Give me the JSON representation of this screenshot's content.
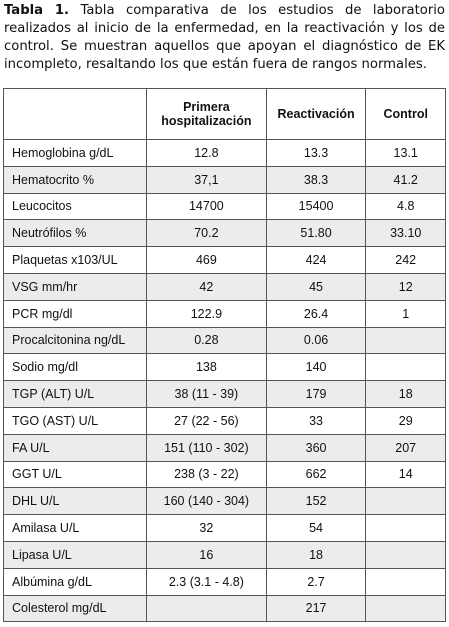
{
  "caption": {
    "label": "Tabla 1.",
    "text": "Tabla comparativa de los estudios de laboratorio realizados al inicio de la enfermedad, en la reactivación y los de control. Se muestran aquellos que apoyan el diagnóstico de EK incompleto, resaltando los que están fuera de rangos normales."
  },
  "table": {
    "header": [
      null,
      "Primera hospitalización",
      "Reactivación",
      "Control"
    ],
    "rows": [
      [
        "Hemoglobina g/dL",
        "12.8",
        "13.3",
        "13.1"
      ],
      [
        "Hematocrito %",
        "37,1",
        "38.3",
        "41.2"
      ],
      [
        "Leucocitos",
        "14700",
        "15400",
        "4.8"
      ],
      [
        "Neutrófilos %",
        "70.2",
        "51.80",
        "33.10"
      ],
      [
        "Plaquetas x103/UL",
        "469",
        "424",
        "242"
      ],
      [
        "VSG mm/hr",
        "42",
        "45",
        "12"
      ],
      [
        "PCR mg/dl",
        "122.9",
        "26.4",
        "1"
      ],
      [
        "Procalcitonina ng/dL",
        "0.28",
        "0.06",
        null
      ],
      [
        "Sodio mg/dl",
        "138",
        "140",
        null
      ],
      [
        "TGP (ALT) U/L",
        "38 (11 - 39)",
        "179",
        "18"
      ],
      [
        "TGO (AST) U/L",
        "27 (22 - 56)",
        "33",
        "29"
      ],
      [
        "FA U/L",
        "151 (110 - 302)",
        "360",
        "207"
      ],
      [
        "GGT U/L",
        "238 (3 - 22)",
        "662",
        "14"
      ],
      [
        "DHL U/L",
        "160 (140 - 304)",
        "152",
        null
      ],
      [
        "Amilasa U/L",
        "32",
        "54",
        null
      ],
      [
        "Lipasa U/L",
        "16",
        "18",
        null
      ],
      [
        "Albúmina g/dL",
        "2.3 (3.1 - 4.8)",
        "2.7",
        null
      ],
      [
        "Colesterol mg/dL",
        null,
        "217",
        null
      ]
    ]
  }
}
